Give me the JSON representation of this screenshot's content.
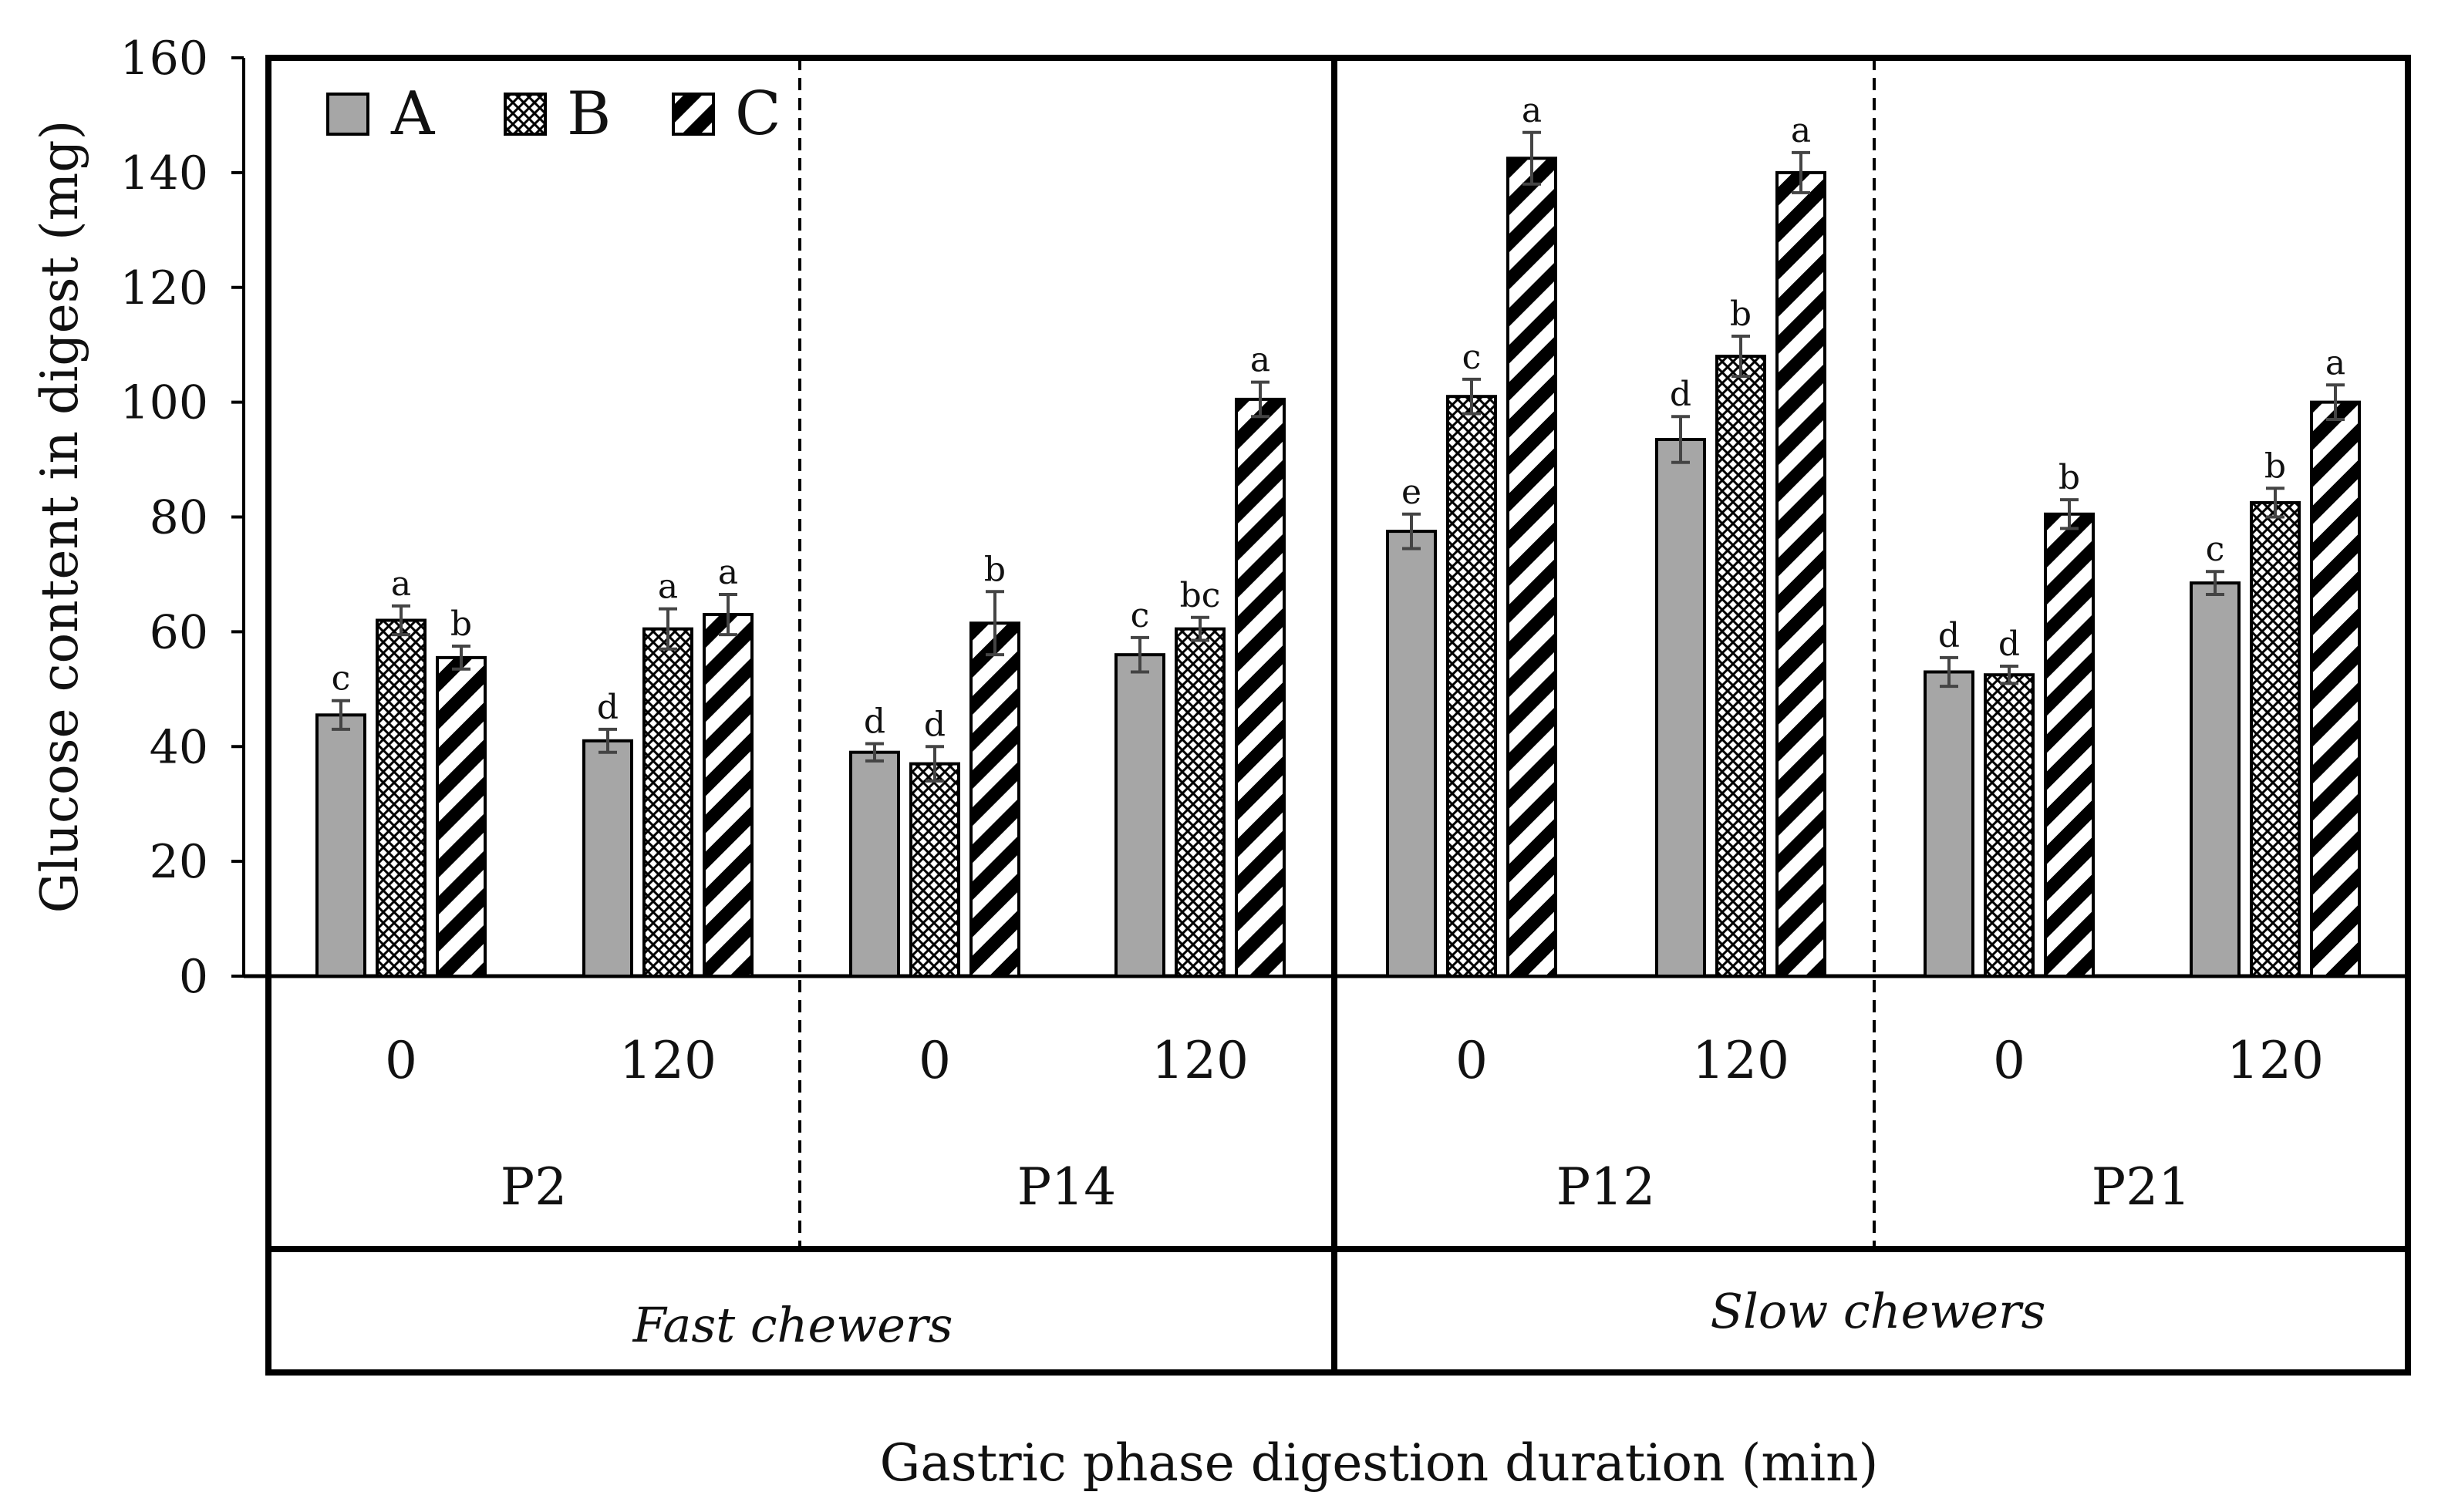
{
  "chart_data": {
    "type": "bar",
    "xlabel": "Gastric phase digestion duration (min)",
    "ylabel": "Glucose content in digest (mg)",
    "ylim": [
      0,
      160
    ],
    "yticks": [
      0,
      20,
      40,
      60,
      80,
      100,
      120,
      140,
      160
    ],
    "grid": false,
    "legend_position": "top-left",
    "series": [
      {
        "name": "A",
        "pattern": "solid",
        "color": "#a6a6a6"
      },
      {
        "name": "B",
        "pattern": "crosshatch",
        "color": "#ffffff"
      },
      {
        "name": "C",
        "pattern": "diagonal-stripes",
        "color": "#000000"
      }
    ],
    "chewer_groups": [
      {
        "label": "Fast chewers",
        "participants": [
          "P2",
          "P14"
        ]
      },
      {
        "label": "Slow chewers",
        "participants": [
          "P12",
          "P21"
        ]
      }
    ],
    "groups": [
      {
        "participant": "P2",
        "time": "0",
        "values": [
          45.5,
          62,
          55.5
        ],
        "errors": [
          2.5,
          2.5,
          2
        ],
        "labels": [
          "c",
          "a",
          "b"
        ]
      },
      {
        "participant": "P2",
        "time": "120",
        "values": [
          41,
          60.5,
          63
        ],
        "errors": [
          2,
          3.5,
          3.5
        ],
        "labels": [
          "d",
          "a",
          "a"
        ]
      },
      {
        "participant": "P14",
        "time": "0",
        "values": [
          39,
          37,
          61.5
        ],
        "errors": [
          1.5,
          3,
          5.5
        ],
        "labels": [
          "d",
          "d",
          "b"
        ]
      },
      {
        "participant": "P14",
        "time": "120",
        "values": [
          56,
          60.5,
          100.5
        ],
        "errors": [
          3,
          2,
          3
        ],
        "labels": [
          "c",
          "bc",
          "a"
        ]
      },
      {
        "participant": "P12",
        "time": "0",
        "values": [
          77.5,
          101,
          142.5
        ],
        "errors": [
          3,
          3,
          4.5
        ],
        "labels": [
          "e",
          "c",
          "a"
        ]
      },
      {
        "participant": "P12",
        "time": "120",
        "values": [
          93.5,
          108,
          140
        ],
        "errors": [
          4,
          3.5,
          3.5
        ],
        "labels": [
          "d",
          "b",
          "a"
        ]
      },
      {
        "participant": "P21",
        "time": "0",
        "values": [
          53,
          52.5,
          80.5
        ],
        "errors": [
          2.5,
          1.5,
          2.5
        ],
        "labels": [
          "d",
          "d",
          "b"
        ]
      },
      {
        "participant": "P21",
        "time": "120",
        "values": [
          68.5,
          82.5,
          100
        ],
        "errors": [
          2,
          2.5,
          3
        ],
        "labels": [
          "c",
          "b",
          "a"
        ]
      }
    ]
  }
}
